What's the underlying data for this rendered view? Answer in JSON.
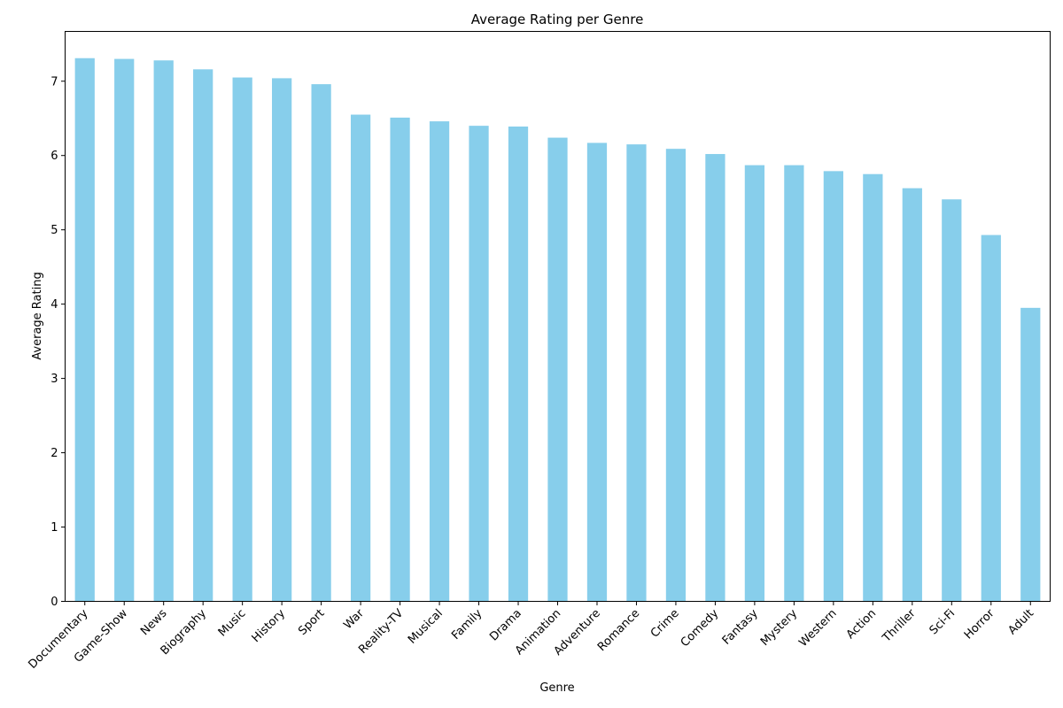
{
  "chart_data": {
    "type": "bar",
    "title": "Average Rating per Genre",
    "xlabel": "Genre",
    "ylabel": "Average Rating",
    "categories": [
      "Documentary",
      "Game-Show",
      "News",
      "Biography",
      "Music",
      "History",
      "Sport",
      "War",
      "Reality-TV",
      "Musical",
      "Family",
      "Drama",
      "Animation",
      "Adventure",
      "Romance",
      "Crime",
      "Comedy",
      "Fantasy",
      "Mystery",
      "Western",
      "Action",
      "Thriller",
      "Sci-Fi",
      "Horror",
      "Adult"
    ],
    "values": [
      7.31,
      7.3,
      7.28,
      7.16,
      7.05,
      7.04,
      6.96,
      6.55,
      6.51,
      6.46,
      6.4,
      6.39,
      6.24,
      6.17,
      6.15,
      6.09,
      6.02,
      5.87,
      5.87,
      5.79,
      5.75,
      5.56,
      5.41,
      4.93,
      3.95
    ],
    "ylim": [
      0,
      7.67
    ],
    "yticks": [
      0,
      1,
      2,
      3,
      4,
      5,
      6,
      7
    ],
    "bar_color": "#87ceeb",
    "grid": false,
    "legend": "none"
  }
}
